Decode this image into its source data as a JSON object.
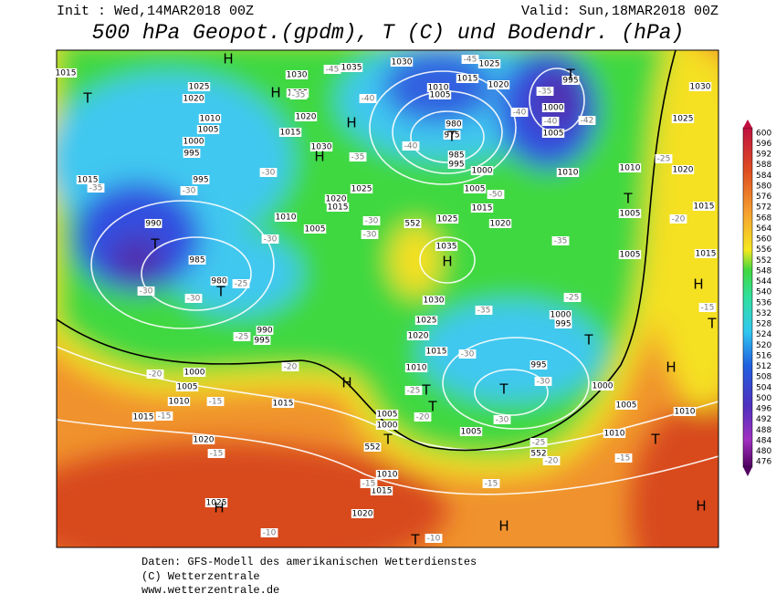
{
  "header": {
    "init": "Init : Wed,14MAR2018 00Z",
    "valid": "Valid: Sun,18MAR2018 00Z",
    "title": "500 hPa Geopot.(gpdm), T (C) und Bodendr. (hPa)"
  },
  "footer": {
    "lines": [
      "Daten: GFS-Modell des amerikanischen Wetterdienstes",
      "(C) Wetterzentrale",
      "www.wetterzentrale.de"
    ]
  },
  "colorbar": {
    "labels": [
      600,
      596,
      592,
      588,
      584,
      580,
      576,
      572,
      568,
      564,
      560,
      556,
      552,
      548,
      544,
      540,
      536,
      532,
      528,
      524,
      520,
      516,
      512,
      508,
      504,
      500,
      496,
      492,
      488,
      484,
      480,
      476
    ]
  },
  "map": {
    "pressure_labels": [
      "1015",
      "1025",
      "1020",
      "1010",
      "1005",
      "1000",
      "995",
      "995",
      "1015",
      "990",
      "985",
      "980",
      "990",
      "995",
      "1000",
      "1005",
      "1010",
      "1015",
      "1020",
      "1015",
      "1025",
      "1020",
      "1015",
      "1010",
      "1005",
      "1000",
      "1010",
      "1015",
      "1020",
      "1025",
      "1030",
      "1035",
      "1025",
      "1015",
      "1020",
      "1005",
      "1000",
      "995",
      "985",
      "975",
      "980",
      "1010",
      "1005",
      "1015",
      "1025",
      "1020",
      "1030",
      "1035",
      "1030",
      "1025",
      "1020",
      "1015",
      "1030",
      "1025",
      "1020",
      "1015",
      "1010",
      "1005",
      "995",
      "1000",
      "1005",
      "1010",
      "1010",
      "1020",
      "1030",
      "1025",
      "1005",
      "1015",
      "1005",
      "1015",
      "1000",
      "995",
      "995",
      "1000",
      "1005",
      "1010",
      "1010",
      "1005"
    ],
    "temperature_labels": [
      "-45",
      "-40",
      "-35",
      "-30",
      "-35",
      "-30",
      "-30",
      "-30",
      "-30",
      "-25",
      "-25",
      "-20",
      "-20",
      "-15",
      "-15",
      "-15",
      "-15",
      "-15",
      "-10",
      "-10",
      "-25",
      "-20",
      "-30",
      "-25",
      "-20",
      "-15",
      "-30",
      "-35",
      "-30",
      "-25",
      "-35",
      "-30",
      "-30",
      "-35",
      "-40",
      "-40",
      "-40",
      "-42",
      "-35",
      "-25",
      "-20",
      "-15",
      "-50",
      "-45"
    ],
    "highs_lows": [
      "T",
      "H",
      "H",
      "H",
      "H",
      "T",
      "T",
      "H",
      "T",
      "T",
      "H",
      "T",
      "T",
      "T",
      "T",
      "T",
      "T",
      "H",
      "H",
      "T",
      "H",
      "T",
      "H",
      "H",
      "T"
    ],
    "geopotential_labels": [
      "552",
      "552",
      "552"
    ]
  }
}
